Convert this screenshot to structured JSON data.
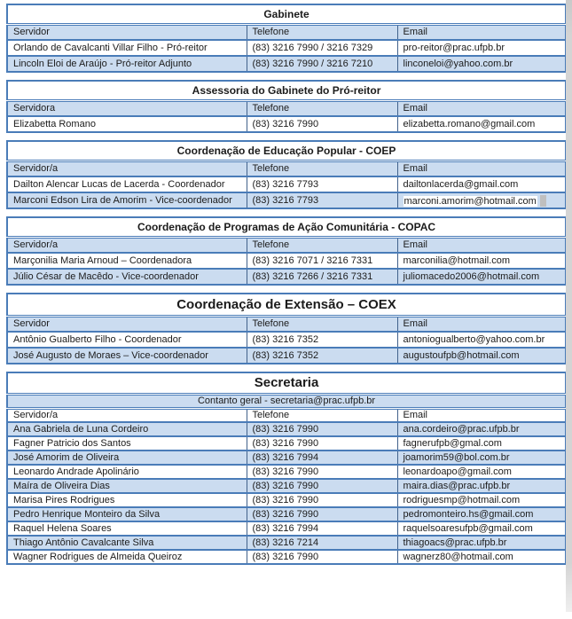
{
  "page": {
    "colors": {
      "accent_border": "#4a7cb8",
      "vertical_line": "#41618b",
      "band_fill": "#cbdcf0",
      "text": "#1b1b1b",
      "page_edge": "#d4d4d4",
      "artifact_gray": "#bfbfbf"
    }
  },
  "tables": [
    {
      "title": "Gabinete",
      "title_size": "normal",
      "headers": [
        "Servidor",
        "Telefone",
        "Email"
      ],
      "header_band": true,
      "shade_parity": 1,
      "compact": false,
      "rows": [
        [
          "Orlando de Cavalcanti Villar Filho - Pró-reitor",
          "(83) 3216 7990 / 3216 7329",
          "pro-reitor@prac.ufpb.br"
        ],
        [
          "Lincoln Eloi de Araújo - Pró-reitor Adjunto",
          "(83) 3216 7990 / 3216 7210",
          "linconeloi@yahoo.com.br"
        ]
      ]
    },
    {
      "title": "Assessoria do Gabinete do Pró-reitor",
      "title_size": "normal",
      "headers": [
        "Servidora",
        "Telefone",
        "Email"
      ],
      "header_band": true,
      "shade_parity": 1,
      "compact": false,
      "rows": [
        [
          "Elizabetta Romano",
          "(83) 3216 7990",
          "elizabetta.romano@gmail.com"
        ]
      ]
    },
    {
      "title": "Coordenação de Educação Popular - COEP",
      "title_size": "normal",
      "headers": [
        "Servidor/a",
        "Telefone",
        "Email"
      ],
      "header_band": true,
      "shade_parity": 1,
      "compact": false,
      "rows": [
        [
          "Dailton Alencar Lucas de Lacerda - Coordenador",
          "(83) 3216 7793",
          "dailtonlacerda@gmail.com"
        ],
        [
          "Marconi Edson Lira de Amorim - Vice-coordenador",
          "(83) 3216 7793",
          "marconi.amorim@hotmail.com"
        ]
      ]
    },
    {
      "title": "Coordenação de Programas de Ação Comunitária - COPAC",
      "title_size": "normal",
      "headers": [
        "Servidor/a",
        "Telefone",
        "Email"
      ],
      "header_band": true,
      "shade_parity": 1,
      "compact": false,
      "rows": [
        [
          "Marçonilia Maria Arnoud – Coordenadora",
          "(83) 3216 7071 / 3216 7331",
          "marconilia@hotmail.com"
        ],
        [
          "Júlio César de Macêdo - Vice-coordenador",
          "(83) 3216 7266 / 3216 7331",
          "juliomacedo2006@hotmail.com"
        ]
      ]
    },
    {
      "title": "Coordenação de Extensão – COEX",
      "title_size": "large",
      "headers": [
        "Servidor",
        "Telefone",
        "Email"
      ],
      "header_band": true,
      "shade_parity": 1,
      "compact": false,
      "rows": [
        [
          "Antônio Gualberto Filho - Coordenador",
          "(83) 3216 7352",
          "antoniogualberto@yahoo.com.br"
        ],
        [
          "José Augusto de Moraes – Vice-coordenador",
          "(83) 3216 7352",
          "augustoufpb@hotmail.com"
        ]
      ]
    },
    {
      "title": "Secretaria",
      "title_size": "large",
      "subtitle": "Contanto geral -  secretaria@prac.ufpb.br",
      "headers": [
        "Servidor/a",
        "Telefone",
        "Email"
      ],
      "header_band": false,
      "shade_parity": 0,
      "compact": true,
      "rows": [
        [
          "Ana Gabriela de Luna Cordeiro",
          "(83) 3216 7990",
          "ana.cordeiro@prac.ufpb.br"
        ],
        [
          "Fagner Patricio dos Santos",
          "(83) 3216 7990",
          "fagnerufpb@gmal.com"
        ],
        [
          "José Amorim de Oliveira",
          "(83) 3216 7994",
          "joamorim59@bol.com.br"
        ],
        [
          "Leonardo Andrade Apolinário",
          "(83) 3216 7990",
          "leonardoapo@gmail.com"
        ],
        [
          "Maíra de Oliveira Dias",
          "(83) 3216 7990",
          "maira.dias@prac.ufpb.br"
        ],
        [
          "Marisa Pires Rodrigues",
          "(83) 3216 7990",
          "rodriguesmp@hotmail.com"
        ],
        [
          "Pedro Henrique Monteiro da Silva",
          "(83) 3216 7990",
          "pedromonteiro.hs@gmail.com"
        ],
        [
          "Raquel Helena Soares",
          "(83) 3216 7994",
          "raquelsoaresufpb@gmail.com"
        ],
        [
          "Thiago Antônio Cavalcante Silva",
          "(83) 3216 7214",
          "thiagoacs@prac.ufpb.br"
        ],
        [
          "Wagner Rodrigues de Almeida Queiroz",
          "(83) 3216 7990",
          "wagnerz80@hotmail.com"
        ]
      ]
    }
  ],
  "selection_artifact": {
    "table_index": 2,
    "row_index": 1,
    "col_index": 2
  }
}
